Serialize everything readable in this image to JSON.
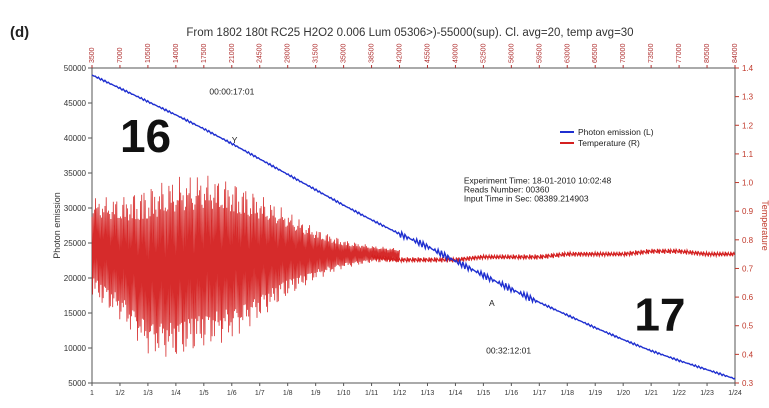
{
  "panel_label": "(d)",
  "chart_data": {
    "type": "line",
    "title": "From 1802 180t RC25 H2O2 0.006 Lum 05306>)-55000(sup). Cl. avg=20, temp avg=30",
    "ylabel_left": "Photon emission",
    "ylabel_right": "Temperature",
    "ylim_left": [
      5000,
      50000
    ],
    "ylim_right": [
      0.3,
      1.4
    ],
    "yticks_left": [
      "50000",
      "45000",
      "40000",
      "35000",
      "30000",
      "25000",
      "20000",
      "15000",
      "10000",
      "5000"
    ],
    "yticks_right": [
      "1.4",
      "1.3",
      "1.2",
      "1.1",
      "1.0",
      "0.9",
      "0.8",
      "0.7",
      "0.6",
      "0.5",
      "0.4",
      "0.3"
    ],
    "xlim": [
      1,
      24
    ],
    "xticks_bottom": [
      "1",
      "1/2",
      "1/3",
      "1/4",
      "1/5",
      "1/6",
      "1/7",
      "1/8",
      "1/9",
      "1/10",
      "1/11",
      "1/12",
      "1/13",
      "1/14",
      "1/15",
      "1/16",
      "1/17",
      "1/18",
      "1/19",
      "1/20",
      "1/21",
      "1/22",
      "1/23",
      "1/24"
    ],
    "xticks_top": [
      "3500",
      "7000",
      "10500",
      "14000",
      "17500",
      "21000",
      "24500",
      "28000",
      "31500",
      "35000",
      "38500",
      "42000",
      "45500",
      "49000",
      "52500",
      "56000",
      "59500",
      "63000",
      "66500",
      "70000",
      "73500",
      "77000",
      "80500",
      "84000"
    ],
    "legend": {
      "position": "upper-right",
      "entries": [
        {
          "label": "Photon emission (L)",
          "color": "#1f2fd0"
        },
        {
          "label": "Temperature (R)",
          "color": "#d42020"
        }
      ]
    },
    "series": [
      {
        "name": "Photon emission (L)",
        "axis": "left",
        "color": "#1f2fd0",
        "x": [
          1,
          2,
          3,
          4,
          5,
          6,
          7,
          8,
          9,
          10,
          11,
          12,
          13,
          14,
          15,
          16,
          17,
          18,
          19,
          20,
          21,
          22,
          23,
          24
        ],
        "y": [
          49000,
          47100,
          45200,
          43300,
          41300,
          39200,
          37000,
          34800,
          32600,
          30400,
          28300,
          26300,
          24500,
          22400,
          20400,
          18400,
          16500,
          14700,
          12900,
          11200,
          9600,
          8200,
          6900,
          5600
        ]
      },
      {
        "name": "Temperature (R)",
        "axis": "right",
        "color": "#d42020",
        "x": [
          1,
          2,
          3,
          4,
          5,
          6,
          7,
          8,
          9,
          10,
          11,
          12,
          13,
          14,
          15,
          16,
          17,
          18,
          19,
          20,
          21,
          22,
          23,
          24
        ],
        "y": [
          0.79,
          0.79,
          0.8,
          0.8,
          0.79,
          0.78,
          0.77,
          0.76,
          0.75,
          0.75,
          0.74,
          0.73,
          0.73,
          0.73,
          0.74,
          0.74,
          0.74,
          0.75,
          0.75,
          0.75,
          0.76,
          0.76,
          0.75,
          0.75
        ],
        "envelope": {
          "x": [
            1,
            2,
            3,
            4,
            5,
            6,
            7,
            8,
            9,
            10,
            11,
            12
          ],
          "max": [
            0.95,
            0.95,
            0.99,
            1.02,
            1.03,
            1.01,
            0.96,
            0.9,
            0.84,
            0.8,
            0.78,
            0.77
          ],
          "min": [
            0.6,
            0.52,
            0.4,
            0.38,
            0.42,
            0.45,
            0.52,
            0.6,
            0.66,
            0.7,
            0.72,
            0.72
          ]
        }
      }
    ],
    "annotations": [
      {
        "text": "00:00:17:01",
        "x": 5.2,
        "y": 46200,
        "axis": "left"
      },
      {
        "text": "Experiment Time: 18-01-2010 10:02:48",
        "x": 14.3,
        "y": 33500,
        "axis": "left"
      },
      {
        "text": "Reads Number: 00360",
        "x": 14.3,
        "y": 32200,
        "axis": "left"
      },
      {
        "text": "Input Time in Sec: 08389.214903",
        "x": 14.3,
        "y": 30900,
        "axis": "left"
      },
      {
        "text": "00:32:12:01",
        "x": 15.1,
        "y": 9200,
        "axis": "left"
      },
      {
        "text": "16",
        "x": 2.0,
        "y": 38000,
        "axis": "left",
        "big": true
      },
      {
        "text": "17",
        "x": 20.4,
        "y": 12500,
        "axis": "left",
        "big": true
      },
      {
        "text": "Y",
        "x": 6.0,
        "y": 39300,
        "axis": "left"
      },
      {
        "text": "A",
        "x": 15.2,
        "y": 16000,
        "axis": "left"
      }
    ]
  }
}
